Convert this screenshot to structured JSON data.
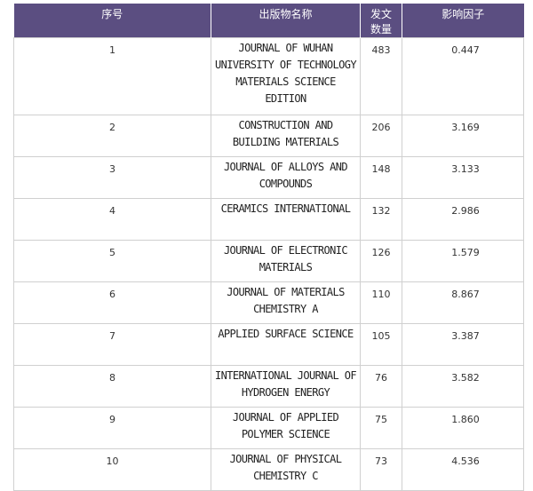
{
  "table": {
    "headers": {
      "index": "序号",
      "name": "出版物名称",
      "count_line1": "发文",
      "count_line2": "数量",
      "impact": "影响因子"
    },
    "rows": [
      {
        "index": "1",
        "name": "JOURNAL OF WUHAN UNIVERSITY OF TECHNOLOGY MATERIALS SCIENCE EDITION",
        "count": "483",
        "impact": "0.447"
      },
      {
        "index": "2",
        "name": "CONSTRUCTION AND BUILDING MATERIALS",
        "count": "206",
        "impact": "3.169"
      },
      {
        "index": "3",
        "name": "JOURNAL OF ALLOYS AND COMPOUNDS",
        "count": "148",
        "impact": "3.133"
      },
      {
        "index": "4",
        "name": "CERAMICS INTERNATIONAL",
        "count": "132",
        "impact": "2.986"
      },
      {
        "index": "5",
        "name": "JOURNAL OF ELECTRONIC MATERIALS",
        "count": "126",
        "impact": "1.579"
      },
      {
        "index": "6",
        "name": "JOURNAL OF MATERIALS CHEMISTRY A",
        "count": "110",
        "impact": "8.867"
      },
      {
        "index": "7",
        "name": "APPLIED SURFACE SCIENCE",
        "count": "105",
        "impact": "3.387"
      },
      {
        "index": "8",
        "name": "INTERNATIONAL JOURNAL OF HYDROGEN ENERGY",
        "count": "76",
        "impact": "3.582"
      },
      {
        "index": "9",
        "name": "JOURNAL OF APPLIED POLYMER SCIENCE",
        "count": "75",
        "impact": "1.860"
      },
      {
        "index": "10",
        "name": "JOURNAL OF PHYSICAL CHEMISTRY C",
        "count": "73",
        "impact": "4.536"
      }
    ]
  }
}
